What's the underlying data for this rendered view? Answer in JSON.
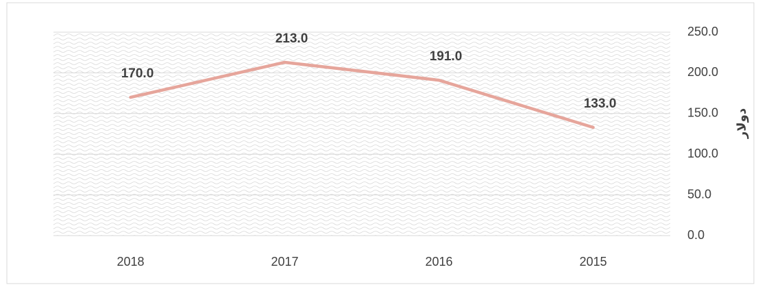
{
  "chart_data": {
    "type": "line",
    "categories": [
      "2018",
      "2017",
      "2016",
      "2015"
    ],
    "values": [
      170,
      213,
      191,
      133
    ],
    "value_labels": [
      "170.0",
      "213.0",
      "191.0",
      "133.0"
    ],
    "color": "#e6a59b",
    "y_axis_label": "دولار",
    "ylim": [
      0,
      250
    ],
    "yticks": [
      {
        "value": 0,
        "label": "0.0"
      },
      {
        "value": 50,
        "label": "50.0"
      },
      {
        "value": 100,
        "label": "100.0"
      },
      {
        "value": 150,
        "label": "150.0"
      },
      {
        "value": 200,
        "label": "200.0"
      },
      {
        "value": 250,
        "label": "250.0"
      }
    ],
    "grid": true
  }
}
